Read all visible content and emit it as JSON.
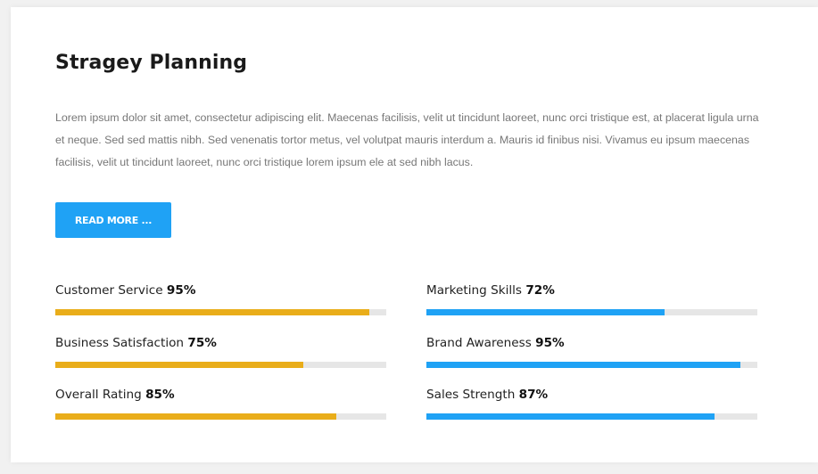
{
  "section": {
    "title": "Stragey Planning",
    "description": "Lorem ipsum dolor sit amet, consectetur adipiscing elit. Maecenas facilisis, velit ut tincidunt laoreet, nunc orci tristique est, at placerat ligula urna et neque. Sed sed mattis nibh. Sed venenatis tortor metus, vel volutpat mauris interdum a. Mauris id finibus nisi. Vivamus eu ipsum maecenas facilisis, velit ut tincidunt laoreet, nunc orci tristique lorem ipsum ele at sed nibh lacus.",
    "button_label": "READ MORE ..."
  },
  "colors": {
    "left_bar": "#e9ad1a",
    "right_bar": "#1fa2f5",
    "button": "#1fa2f5",
    "track": "#e6e6e6"
  },
  "skills_left": [
    {
      "label": "Customer Service",
      "value": "95%",
      "percent": 95
    },
    {
      "label": "Business Satisfaction",
      "value": "75%",
      "percent": 75
    },
    {
      "label": "Overall Rating",
      "value": "85%",
      "percent": 85
    }
  ],
  "skills_right": [
    {
      "label": "Marketing Skills",
      "value": "72%",
      "percent": 72
    },
    {
      "label": "Brand Awareness",
      "value": "95%",
      "percent": 95
    },
    {
      "label": "Sales Strength",
      "value": "87%",
      "percent": 87
    }
  ]
}
